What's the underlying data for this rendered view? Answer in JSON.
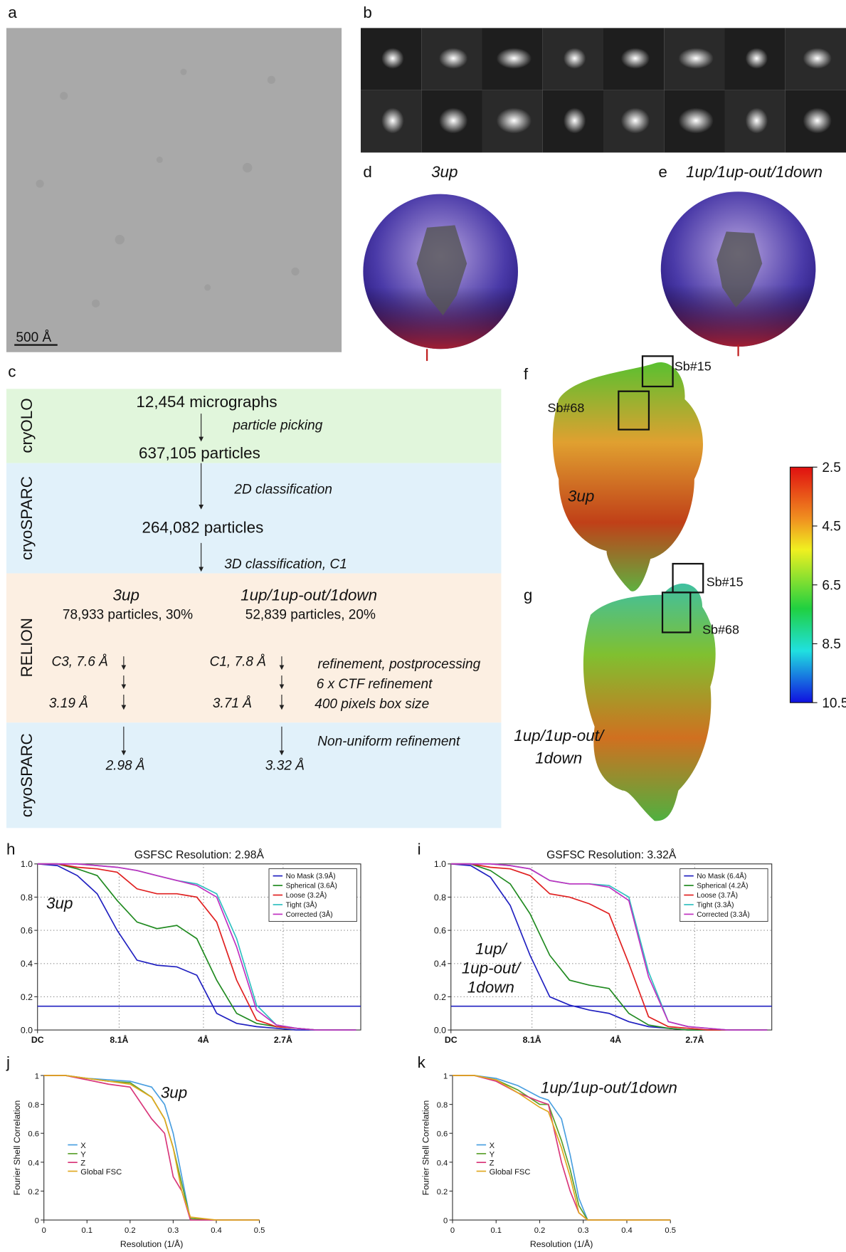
{
  "labels": [
    "a",
    "b",
    "c",
    "d",
    "e",
    "f",
    "g",
    "h",
    "i",
    "j",
    "k"
  ],
  "micrograph": {
    "scale_bar": "500 Å"
  },
  "orientation": {
    "d_title": "3up",
    "e_title": "1up/1up-out/1down"
  },
  "flowchart": {
    "stages": [
      "cryOLO",
      "cryoSPARC",
      "RELION",
      "cryoSPARC"
    ],
    "texts": [
      "12,454 micrographs",
      "particle picking",
      "637,105 particles",
      "2D classification",
      "264,082 particles",
      "3D classification, C1",
      "3up",
      "1up/1up-out/1down",
      "78,933 particles, 30%",
      "52,839 particles, 20%",
      "C3, 7.6 Å",
      "C1, 7.8 Å",
      "refinement, postprocessing",
      "6 x CTF refinement",
      "3.19 Å",
      "3.71 Å",
      "400 pixels box size",
      "Non-uniform refinement",
      "2.98 Å",
      "3.32 Å"
    ]
  },
  "maps": {
    "f": {
      "boxes": [
        "Sb#15",
        "Sb#68"
      ],
      "label": "3up"
    },
    "g": {
      "boxes": [
        "Sb#15",
        "Sb#68"
      ],
      "label": [
        "1up/1up-out/",
        "1down"
      ]
    }
  },
  "colorbar": {
    "lim": [
      2.5,
      10.5
    ],
    "ticks": [
      2.5,
      4.5,
      6.5,
      8.5,
      10.5
    ]
  },
  "chart_data": [
    {
      "type": "line",
      "title": "GSFSC Resolution: 2.98Å",
      "annotation": [
        "3up"
      ],
      "grid": true,
      "legend": "upper right",
      "threshold": 0.143,
      "x": [
        0,
        0.03,
        0.06,
        0.09,
        0.12,
        0.15,
        0.18,
        0.21,
        0.24,
        0.27,
        0.3,
        0.33,
        0.36,
        0.39,
        0.42,
        0.45,
        0.48
      ],
      "xlim": [
        0,
        0.487
      ],
      "ylim": [
        0,
        1
      ],
      "xticks": [
        {
          "value": 0,
          "label": "DC"
        },
        {
          "value": 0.123,
          "label": "8.1Å"
        },
        {
          "value": 0.25,
          "label": "4Å"
        },
        {
          "value": 0.37,
          "label": "2.7Å"
        }
      ],
      "yticks": [
        {
          "value": 0,
          "label": "0.0"
        },
        0.2,
        0.4,
        0.6,
        0.8,
        {
          "value": 1,
          "label": "1.0"
        }
      ],
      "series": [
        {
          "name": "No Mask (3.9Å)",
          "color": "#2020c0",
          "values": [
            1,
            0.99,
            0.93,
            0.82,
            0.6,
            0.42,
            0.39,
            0.38,
            0.33,
            0.1,
            0.04,
            0.02,
            0.01,
            0,
            0,
            0,
            0
          ]
        },
        {
          "name": "Spherical (3.6Å)",
          "color": "#208a20",
          "values": [
            1,
            1,
            0.97,
            0.93,
            0.78,
            0.65,
            0.61,
            0.63,
            0.55,
            0.3,
            0.1,
            0.04,
            0.02,
            0.01,
            0,
            0,
            0
          ]
        },
        {
          "name": "Loose (3.2Å)",
          "color": "#e02020",
          "values": [
            1,
            1,
            0.98,
            0.97,
            0.95,
            0.85,
            0.82,
            0.82,
            0.8,
            0.65,
            0.3,
            0.06,
            0.02,
            0.01,
            0,
            0,
            0
          ]
        },
        {
          "name": "Tight (3Å)",
          "color": "#30c0c0",
          "values": [
            1,
            1,
            1,
            0.99,
            0.98,
            0.96,
            0.93,
            0.9,
            0.88,
            0.82,
            0.55,
            0.15,
            0.03,
            0.01,
            0,
            0,
            0
          ]
        },
        {
          "name": "Corrected (3Å)",
          "color": "#c030c0",
          "values": [
            1,
            1,
            1,
            0.99,
            0.98,
            0.96,
            0.93,
            0.9,
            0.87,
            0.8,
            0.5,
            0.12,
            0.03,
            0.01,
            0,
            0,
            0
          ]
        }
      ]
    },
    {
      "type": "line",
      "title": "GSFSC Resolution: 3.32Å",
      "annotation": [
        "1up/",
        "1up-out/",
        "1down"
      ],
      "grid": true,
      "legend": "upper right",
      "threshold": 0.143,
      "x": [
        0,
        0.03,
        0.06,
        0.09,
        0.12,
        0.15,
        0.18,
        0.21,
        0.24,
        0.27,
        0.3,
        0.33,
        0.36,
        0.39,
        0.42,
        0.45,
        0.48
      ],
      "xlim": [
        0,
        0.487
      ],
      "ylim": [
        0,
        1
      ],
      "xticks": [
        {
          "value": 0,
          "label": "DC"
        },
        {
          "value": 0.123,
          "label": "8.1Å"
        },
        {
          "value": 0.25,
          "label": "4Å"
        },
        {
          "value": 0.37,
          "label": "2.7Å"
        }
      ],
      "yticks": [
        {
          "value": 0,
          "label": "0.0"
        },
        0.2,
        0.4,
        0.6,
        0.8,
        {
          "value": 1,
          "label": "1.0"
        }
      ],
      "series": [
        {
          "name": "No Mask (6.4Å)",
          "color": "#2020c0",
          "values": [
            1,
            0.99,
            0.92,
            0.75,
            0.45,
            0.2,
            0.15,
            0.12,
            0.1,
            0.05,
            0.02,
            0.01,
            0,
            0,
            0,
            0,
            0
          ]
        },
        {
          "name": "Spherical (4.2Å)",
          "color": "#208a20",
          "values": [
            1,
            1,
            0.96,
            0.88,
            0.7,
            0.45,
            0.3,
            0.27,
            0.25,
            0.1,
            0.03,
            0.01,
            0,
            0,
            0,
            0,
            0
          ]
        },
        {
          "name": "Loose (3.7Å)",
          "color": "#e02020",
          "values": [
            1,
            1,
            0.98,
            0.97,
            0.93,
            0.82,
            0.8,
            0.76,
            0.7,
            0.4,
            0.08,
            0.02,
            0.01,
            0,
            0,
            0,
            0
          ]
        },
        {
          "name": "Tight (3.3Å)",
          "color": "#30c0c0",
          "values": [
            1,
            1,
            1,
            0.99,
            0.97,
            0.9,
            0.88,
            0.88,
            0.87,
            0.8,
            0.35,
            0.05,
            0.02,
            0.01,
            0,
            0,
            0
          ]
        },
        {
          "name": "Corrected (3.3Å)",
          "color": "#c030c0",
          "values": [
            1,
            1,
            1,
            0.99,
            0.97,
            0.9,
            0.88,
            0.88,
            0.86,
            0.78,
            0.32,
            0.05,
            0.02,
            0.01,
            0,
            0,
            0
          ]
        }
      ]
    },
    {
      "type": "line",
      "annotation": [
        "3up"
      ],
      "grid": false,
      "legend": "center left",
      "x_label": "Resolution (1/Å)",
      "y_label": "Fourier Shell Correlation",
      "x": [
        0,
        0.05,
        0.1,
        0.15,
        0.2,
        0.25,
        0.28,
        0.3,
        0.32,
        0.34,
        0.4,
        0.5
      ],
      "xlim": [
        0,
        0.5
      ],
      "ylim": [
        0,
        1
      ],
      "xticks": [
        0,
        0.1,
        0.2,
        0.3,
        0.4,
        0.5
      ],
      "yticks": [
        0,
        0.2,
        0.4,
        0.6,
        0.8,
        1
      ],
      "series": [
        {
          "name": "X",
          "color": "#4a9fe0",
          "values": [
            1,
            1,
            0.98,
            0.97,
            0.96,
            0.92,
            0.8,
            0.6,
            0.3,
            0,
            0,
            0
          ]
        },
        {
          "name": "Y",
          "color": "#5aa02c",
          "values": [
            1,
            1,
            0.98,
            0.96,
            0.95,
            0.85,
            0.7,
            0.5,
            0.25,
            0.01,
            0,
            0
          ]
        },
        {
          "name": "Z",
          "color": "#d9367a",
          "values": [
            1,
            1,
            0.97,
            0.94,
            0.92,
            0.7,
            0.6,
            0.3,
            0.2,
            0,
            0,
            0
          ]
        },
        {
          "name": "Global FSC",
          "color": "#e0a820",
          "values": [
            1,
            1,
            0.98,
            0.96,
            0.94,
            0.85,
            0.7,
            0.5,
            0.2,
            0.02,
            0,
            0
          ]
        }
      ]
    },
    {
      "type": "line",
      "annotation": [
        "1up/1up-out/1down"
      ],
      "grid": false,
      "legend": "center left",
      "x_label": "Resolution (1/Å)",
      "y_label": "Fourier Shell Correlation",
      "x": [
        0,
        0.05,
        0.1,
        0.15,
        0.2,
        0.22,
        0.25,
        0.27,
        0.29,
        0.31,
        0.4,
        0.5
      ],
      "xlim": [
        0,
        0.5
      ],
      "ylim": [
        0,
        1
      ],
      "xticks": [
        0,
        0.1,
        0.2,
        0.3,
        0.4,
        0.5
      ],
      "yticks": [
        0,
        0.2,
        0.4,
        0.6,
        0.8,
        1
      ],
      "series": [
        {
          "name": "X",
          "color": "#4a9fe0",
          "values": [
            1,
            1,
            0.98,
            0.93,
            0.85,
            0.83,
            0.7,
            0.45,
            0.15,
            0,
            0,
            0
          ]
        },
        {
          "name": "Y",
          "color": "#5aa02c",
          "values": [
            1,
            1,
            0.97,
            0.9,
            0.8,
            0.8,
            0.55,
            0.35,
            0.1,
            0,
            0,
            0
          ]
        },
        {
          "name": "Z",
          "color": "#d9367a",
          "values": [
            1,
            1,
            0.96,
            0.88,
            0.82,
            0.8,
            0.4,
            0.2,
            0.05,
            0,
            0,
            0
          ]
        },
        {
          "name": "Global FSC",
          "color": "#e0a820",
          "values": [
            1,
            1,
            0.97,
            0.88,
            0.78,
            0.75,
            0.5,
            0.3,
            0.05,
            0,
            0,
            0
          ]
        }
      ]
    }
  ]
}
